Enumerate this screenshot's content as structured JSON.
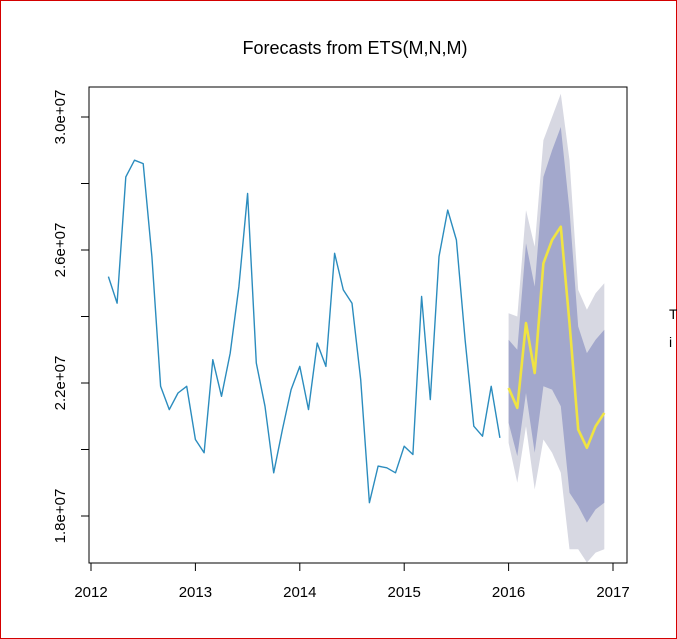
{
  "chart_data": {
    "type": "line",
    "title": "Forecasts from ETS(M,N,M)",
    "xlabel": "",
    "ylabel": "",
    "xlim": [
      2012,
      2017
    ],
    "ylim": [
      17200000,
      30400000
    ],
    "x_ticks": [
      2012,
      2013,
      2014,
      2015,
      2016,
      2017
    ],
    "x_tick_labels": [
      "2012",
      "2013",
      "2014",
      "2015",
      "2016",
      "2017"
    ],
    "y_ticks": [
      18000000,
      22000000,
      26000000,
      30000000
    ],
    "y_tick_labels": [
      "1.8e+07",
      "2.2e+07",
      "2.6e+07",
      "3.0e+07"
    ],
    "y_minor_ticks": [
      20000000,
      24000000,
      28000000
    ],
    "grid": false,
    "legend": "none",
    "colors": {
      "actual": "#2b8cbe",
      "forecast": "#f0e442",
      "pi80": "#a3a8cc",
      "pi95": "#d7d8e2"
    },
    "series": [
      {
        "name": "",
        "role": "actual",
        "x": [
          2012.1667,
          2012.25,
          2012.3333,
          2012.4167,
          2012.5,
          2012.5833,
          2012.6667,
          2012.75,
          2012.8333,
          2012.9167,
          2013.0,
          2013.0833,
          2013.1667,
          2013.25,
          2013.3333,
          2013.4167,
          2013.5,
          2013.5833,
          2013.6667,
          2013.75,
          2013.8333,
          2013.9167,
          2014.0,
          2014.0833,
          2014.1667,
          2014.25,
          2014.3333,
          2014.4167,
          2014.5,
          2014.5833,
          2014.6667,
          2014.75,
          2014.8333,
          2014.9167,
          2015.0,
          2015.0833,
          2015.1667,
          2015.25,
          2015.3333,
          2015.4167,
          2015.5,
          2015.5833,
          2015.6667,
          2015.75,
          2015.8333,
          2015.9167
        ],
        "y": [
          25200000,
          24400000,
          28200000,
          28700000,
          28600000,
          25800000,
          21900000,
          21200000,
          21700000,
          21900000,
          20300000,
          19900000,
          22700000,
          21600000,
          22900000,
          24900000,
          27700000,
          22600000,
          21300000,
          19300000,
          20600000,
          21800000,
          22500000,
          21200000,
          23200000,
          22500000,
          25900000,
          24800000,
          24400000,
          22100000,
          18400000,
          19500000,
          19450000,
          19300000,
          20100000,
          19850000,
          24600000,
          21500000,
          25800000,
          27200000,
          26300000,
          23300000,
          20700000,
          20400000,
          21900000,
          20350000
        ]
      },
      {
        "name": "",
        "role": "forecast",
        "x": [
          2016.0,
          2016.0833,
          2016.1667,
          2016.25,
          2016.3333,
          2016.4167,
          2016.5,
          2016.5833,
          2016.6667,
          2016.75,
          2016.8333,
          2016.9167
        ],
        "y": [
          21850000,
          21250000,
          23800000,
          22300000,
          25600000,
          26300000,
          26700000,
          23800000,
          20600000,
          20050000,
          20700000,
          21100000
        ],
        "lo80": [
          20800000,
          19800000,
          21700000,
          19900000,
          21900000,
          21800000,
          21300000,
          18700000,
          18300000,
          17800000,
          18200000,
          18400000
        ],
        "hi80": [
          23300000,
          23000000,
          26200000,
          24900000,
          28200000,
          29000000,
          29700000,
          27200000,
          23700000,
          22900000,
          23300000,
          23600000
        ],
        "lo95": [
          20200000,
          19000000,
          20700000,
          18800000,
          20300000,
          19900000,
          19300000,
          17000000,
          17000000,
          16600000,
          16900000,
          17000000
        ],
        "hi95": [
          24100000,
          24000000,
          27200000,
          26100000,
          29300000,
          30000000,
          30700000,
          28700000,
          24800000,
          24200000,
          24700000,
          25000000
        ]
      }
    ]
  },
  "clipped_text": {
    "line1": "T",
    "line2": "i"
  }
}
